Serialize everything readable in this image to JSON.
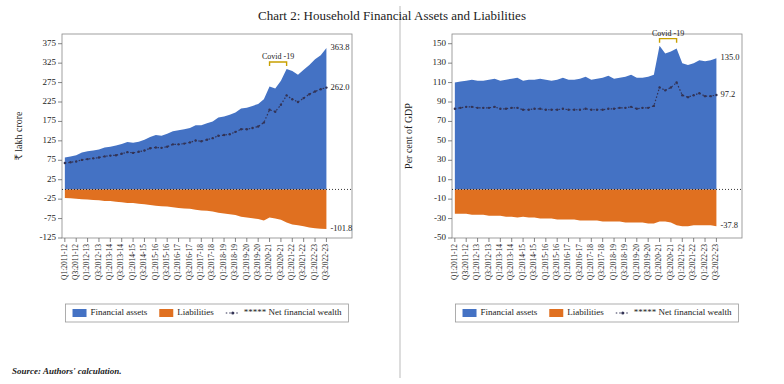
{
  "chart_data": [
    {
      "type": "area",
      "title": "Chart 2: Household Financial Assets and Liabilities",
      "ylabel": "₹ lakh crore",
      "categories": [
        "Q1:2011-12",
        null,
        "Q3:2011-12",
        null,
        "Q1:2012-13",
        null,
        "Q3:2012-13",
        null,
        "Q1:2013-14",
        null,
        "Q3:2013-14",
        null,
        "Q1:2014-15",
        null,
        "Q3:2014-15",
        null,
        "Q1:2015-16",
        null,
        "Q3:2015-16",
        null,
        "Q1:2016-17",
        null,
        "Q3:2016-17",
        null,
        "Q1:2017-18",
        null,
        "Q3:2017-18",
        null,
        "Q1:2018-19",
        null,
        "Q3:2018-19",
        null,
        "Q1:2019-20",
        null,
        "Q3:2019-20",
        null,
        "Q1:2020-21",
        null,
        "Q3:2020-21",
        null,
        "Q1:2021-22",
        null,
        "Q3:2021-22",
        null,
        "Q1:2022-23",
        null,
        "Q3:2022-23"
      ],
      "series": [
        {
          "name": "Financial assets",
          "type": "area",
          "color": "#4472C4",
          "data_labels": true,
          "values": [
            82,
            85,
            88,
            95,
            98,
            100,
            103,
            108,
            110,
            113,
            117,
            122,
            120,
            123,
            128,
            135,
            140,
            138,
            143,
            150,
            152,
            155,
            158,
            165,
            165,
            170,
            175,
            185,
            188,
            192,
            198,
            208,
            210,
            215,
            220,
            232,
            265,
            260,
            280,
            310,
            305,
            295,
            308,
            320,
            335,
            345,
            363.8
          ],
          "value_labels": [
            null,
            null,
            null,
            null,
            null,
            null,
            null,
            null,
            null,
            null,
            null,
            null,
            null,
            null,
            null,
            null,
            null,
            null,
            null,
            null,
            null,
            null,
            null,
            null,
            null,
            null,
            null,
            null,
            null,
            null,
            null,
            null,
            null,
            null,
            null,
            null,
            null,
            null,
            null,
            null,
            null,
            null,
            null,
            null,
            null,
            null,
            "363.8"
          ]
        },
        {
          "name": "Liabilities",
          "type": "area",
          "color": "#E07020",
          "data_labels": true,
          "values": [
            -22,
            -23,
            -24,
            -25,
            -26,
            -27,
            -28,
            -30,
            -30,
            -32,
            -33,
            -35,
            -35,
            -37,
            -38,
            -40,
            -42,
            -43,
            -44,
            -46,
            -48,
            -49,
            -50,
            -52,
            -54,
            -55,
            -57,
            -60,
            -62,
            -64,
            -66,
            -70,
            -72,
            -74,
            -76,
            -80,
            -72,
            -75,
            -78,
            -85,
            -90,
            -92,
            -95,
            -98,
            -100,
            -101,
            -101.8
          ],
          "value_labels": [
            null,
            null,
            null,
            null,
            null,
            null,
            null,
            null,
            null,
            null,
            null,
            null,
            null,
            null,
            null,
            null,
            null,
            null,
            null,
            null,
            null,
            null,
            null,
            null,
            null,
            null,
            null,
            null,
            null,
            null,
            null,
            null,
            null,
            null,
            null,
            null,
            null,
            null,
            null,
            null,
            null,
            null,
            null,
            null,
            null,
            null,
            "-101.8"
          ]
        },
        {
          "name": "***** Net financial wealth",
          "type": "line",
          "color": "#333355",
          "line_style": "dotted",
          "marker": "point",
          "data_labels": true,
          "values": [
            68,
            70,
            72,
            76,
            78,
            80,
            82,
            85,
            87,
            88,
            92,
            96,
            94,
            97,
            100,
            106,
            108,
            107,
            110,
            116,
            116,
            118,
            121,
            126,
            124,
            128,
            132,
            138,
            140,
            142,
            148,
            155,
            155,
            158,
            162,
            172,
            205,
            200,
            218,
            242,
            232,
            225,
            235,
            245,
            252,
            258,
            262.0
          ],
          "value_labels": [
            null,
            null,
            null,
            null,
            null,
            null,
            null,
            null,
            null,
            null,
            null,
            null,
            null,
            null,
            null,
            null,
            null,
            null,
            null,
            null,
            null,
            null,
            null,
            null,
            null,
            null,
            null,
            null,
            null,
            null,
            null,
            null,
            null,
            null,
            null,
            null,
            null,
            null,
            null,
            null,
            null,
            null,
            null,
            null,
            null,
            null,
            "262.0"
          ]
        }
      ],
      "ylim": [
        -125,
        400
      ],
      "yticks": [
        -125,
        -75,
        -25,
        25,
        75,
        125,
        175,
        225,
        275,
        325,
        375
      ],
      "grid": false,
      "legend": "bottom",
      "annotations": [
        {
          "text": "Covid -19",
          "x_start": 36,
          "x_end": 39,
          "color": "#C8A000"
        },
        {
          "text": "Source: Authors' calculation."
        }
      ]
    },
    {
      "type": "area",
      "ylabel": "Per cent of GDP",
      "categories": [
        "Q1:2011-12",
        null,
        "Q3:2011-12",
        null,
        "Q1:2012-13",
        null,
        "Q3:2012-13",
        null,
        "Q1:2013-14",
        null,
        "Q3:2013-14",
        null,
        "Q1:2014-15",
        null,
        "Q3:2014-15",
        null,
        "Q1:2015-16",
        null,
        "Q3:2015-16",
        null,
        "Q1:2016-17",
        null,
        "Q3:2016-17",
        null,
        "Q1:2017-18",
        null,
        "Q3:2017-18",
        null,
        "Q1:2018-19",
        null,
        "Q3:2018-19",
        null,
        "Q1:2019-20",
        null,
        "Q3:2019-20",
        null,
        "Q1:2020-21",
        null,
        "Q3:2020-21",
        null,
        "Q1:2021-22",
        null,
        "Q3:2021-22",
        null,
        "Q1:2022-23",
        null,
        "Q3:2022-23"
      ],
      "series": [
        {
          "name": "Financial assets",
          "type": "area",
          "color": "#4472C4",
          "data_labels": true,
          "values": [
            110,
            111,
            112,
            113,
            112,
            112,
            113,
            114,
            112,
            113,
            114,
            115,
            112,
            113,
            113,
            114,
            113,
            112,
            113,
            115,
            113,
            113,
            114,
            116,
            113,
            114,
            115,
            117,
            114,
            115,
            116,
            118,
            115,
            115,
            116,
            118,
            148,
            140,
            142,
            145,
            130,
            128,
            130,
            133,
            132,
            133,
            135.0
          ],
          "value_labels": [
            null,
            null,
            null,
            null,
            null,
            null,
            null,
            null,
            null,
            null,
            null,
            null,
            null,
            null,
            null,
            null,
            null,
            null,
            null,
            null,
            null,
            null,
            null,
            null,
            null,
            null,
            null,
            null,
            null,
            null,
            null,
            null,
            null,
            null,
            null,
            null,
            null,
            null,
            null,
            null,
            null,
            null,
            null,
            null,
            null,
            null,
            "135.0"
          ]
        },
        {
          "name": "Liabilities",
          "type": "area",
          "color": "#E07020",
          "data_labels": true,
          "values": [
            -25,
            -25,
            -25,
            -26,
            -26,
            -26,
            -27,
            -27,
            -27,
            -28,
            -28,
            -29,
            -28,
            -29,
            -29,
            -30,
            -30,
            -30,
            -31,
            -31,
            -31,
            -31,
            -32,
            -32,
            -32,
            -32,
            -33,
            -33,
            -33,
            -33,
            -34,
            -34,
            -34,
            -34,
            -35,
            -35,
            -33,
            -33,
            -34,
            -37,
            -38,
            -38,
            -37,
            -37,
            -37,
            -37,
            -37.8
          ],
          "value_labels": [
            null,
            null,
            null,
            null,
            null,
            null,
            null,
            null,
            null,
            null,
            null,
            null,
            null,
            null,
            null,
            null,
            null,
            null,
            null,
            null,
            null,
            null,
            null,
            null,
            null,
            null,
            null,
            null,
            null,
            null,
            null,
            null,
            null,
            null,
            null,
            null,
            null,
            null,
            null,
            null,
            null,
            null,
            null,
            null,
            null,
            null,
            "-37.8"
          ]
        },
        {
          "name": "***** Net financial wealth",
          "type": "line",
          "color": "#333355",
          "line_style": "dotted",
          "marker": "point",
          "data_labels": true,
          "values": [
            83,
            84,
            85,
            85,
            84,
            84,
            84,
            85,
            83,
            83,
            84,
            84,
            82,
            82,
            83,
            83,
            82,
            82,
            82,
            83,
            82,
            82,
            82,
            83,
            82,
            82,
            82,
            83,
            83,
            84,
            84,
            85,
            83,
            84,
            84,
            86,
            105,
            102,
            105,
            110,
            97,
            95,
            97,
            99,
            96,
            96,
            97.2
          ],
          "value_labels": [
            null,
            null,
            null,
            null,
            null,
            null,
            null,
            null,
            null,
            null,
            null,
            null,
            null,
            null,
            null,
            null,
            null,
            null,
            null,
            null,
            null,
            null,
            null,
            null,
            null,
            null,
            null,
            null,
            null,
            null,
            null,
            null,
            null,
            null,
            null,
            null,
            null,
            null,
            null,
            null,
            null,
            null,
            null,
            null,
            null,
            null,
            "97.2"
          ]
        }
      ],
      "ylim": [
        -50,
        160
      ],
      "yticks": [
        -50,
        -30,
        -10,
        10,
        30,
        50,
        70,
        90,
        110,
        130,
        150
      ],
      "grid": false,
      "legend": "bottom",
      "annotations": [
        {
          "text": "Covid -19",
          "x_start": 36,
          "x_end": 39,
          "color": "#C8A000"
        }
      ]
    }
  ]
}
